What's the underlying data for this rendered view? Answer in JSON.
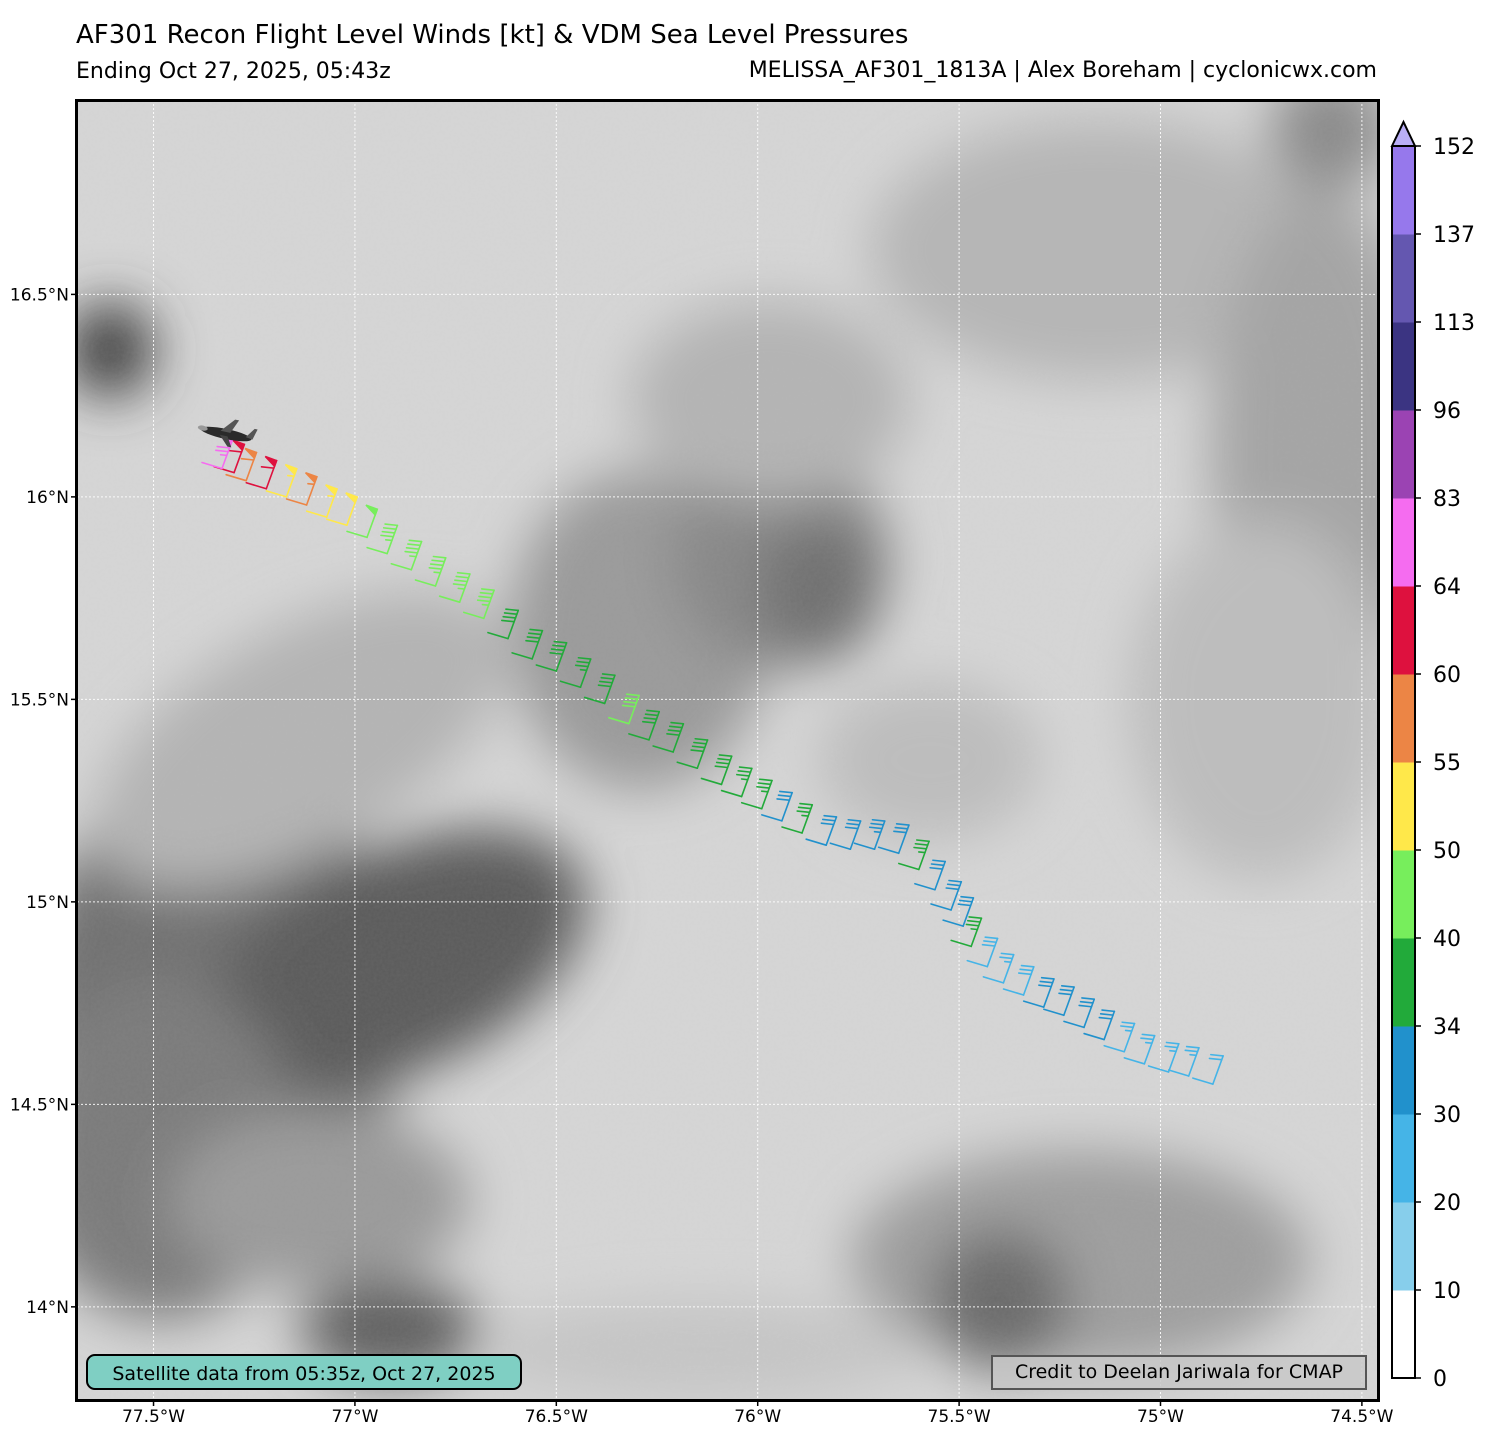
{
  "header": {
    "title": "AF301 Recon Flight Level Winds [kt] & VDM Sea Level Pressures",
    "subtitle_left": "Ending Oct 27, 2025, 05:43z",
    "subtitle_right": "MELISSA_AF301_1813A | Alex Boreham | cyclonicwx.com"
  },
  "map": {
    "lon_range": [
      -77.69,
      -74.46
    ],
    "lat_range": [
      13.77,
      16.98
    ],
    "lon_ticks": [
      {
        "value": -77.5,
        "label": "77.5°W"
      },
      {
        "value": -77.0,
        "label": "77°W"
      },
      {
        "value": -76.5,
        "label": "76.5°W"
      },
      {
        "value": -76.0,
        "label": "76°W"
      },
      {
        "value": -75.5,
        "label": "75.5°W"
      },
      {
        "value": -75.0,
        "label": "75°W"
      },
      {
        "value": -74.5,
        "label": "74.5°W"
      }
    ],
    "lat_ticks": [
      {
        "value": 16.5,
        "label": "16.5°N"
      },
      {
        "value": 16.0,
        "label": "16°N"
      },
      {
        "value": 15.5,
        "label": "15.5°N"
      },
      {
        "value": 15.0,
        "label": "15°N"
      },
      {
        "value": 14.5,
        "label": "14.5°N"
      },
      {
        "value": 14.0,
        "label": "14°N"
      }
    ],
    "gridlines": true,
    "background": "grayscale infrared satellite imagery"
  },
  "colorbar": {
    "levels": [
      "0",
      "10",
      "20",
      "30",
      "34",
      "40",
      "50",
      "55",
      "60",
      "64",
      "83",
      "96",
      "113",
      "137",
      "152"
    ],
    "colors": [
      "#ffffff",
      "#87ceeb",
      "#45b4e7",
      "#2191cc",
      "#22aa3a",
      "#77ee5c",
      "#ffe84a",
      "#ec8545",
      "#de113e",
      "#f56cf0",
      "#9b43b3",
      "#3b3482",
      "#6457b0",
      "#9678ec"
    ],
    "extend_color": "#b9aef6"
  },
  "flight_track": {
    "aircraft": "AF301",
    "start": {
      "lon": -74.87,
      "lat": 14.56
    },
    "end": {
      "lon": -77.33,
      "lat": 16.08
    },
    "obs": [
      {
        "lon": -74.87,
        "lat": 14.55,
        "kt": 22
      },
      {
        "lon": -74.93,
        "lat": 14.57,
        "kt": 24
      },
      {
        "lon": -74.98,
        "lat": 14.58,
        "kt": 26
      },
      {
        "lon": -75.04,
        "lat": 14.6,
        "kt": 27
      },
      {
        "lon": -75.09,
        "lat": 14.63,
        "kt": 25
      },
      {
        "lon": -75.14,
        "lat": 14.66,
        "kt": 31
      },
      {
        "lon": -75.19,
        "lat": 14.69,
        "kt": 32
      },
      {
        "lon": -75.24,
        "lat": 14.72,
        "kt": 32
      },
      {
        "lon": -75.29,
        "lat": 14.74,
        "kt": 31
      },
      {
        "lon": -75.34,
        "lat": 14.77,
        "kt": 28
      },
      {
        "lon": -75.39,
        "lat": 14.8,
        "kt": 27
      },
      {
        "lon": -75.43,
        "lat": 14.84,
        "kt": 29
      },
      {
        "lon": -75.47,
        "lat": 14.89,
        "kt": 36
      },
      {
        "lon": -75.49,
        "lat": 14.94,
        "kt": 31
      },
      {
        "lon": -75.52,
        "lat": 14.98,
        "kt": 32
      },
      {
        "lon": -75.56,
        "lat": 15.03,
        "kt": 30
      },
      {
        "lon": -75.6,
        "lat": 15.08,
        "kt": 36
      },
      {
        "lon": -75.65,
        "lat": 15.12,
        "kt": 32
      },
      {
        "lon": -75.71,
        "lat": 15.13,
        "kt": 33
      },
      {
        "lon": -75.77,
        "lat": 15.13,
        "kt": 32
      },
      {
        "lon": -75.83,
        "lat": 15.14,
        "kt": 31
      },
      {
        "lon": -75.89,
        "lat": 15.17,
        "kt": 36
      },
      {
        "lon": -75.94,
        "lat": 15.2,
        "kt": 31
      },
      {
        "lon": -75.99,
        "lat": 15.23,
        "kt": 36
      },
      {
        "lon": -76.04,
        "lat": 15.26,
        "kt": 37
      },
      {
        "lon": -76.09,
        "lat": 15.29,
        "kt": 38
      },
      {
        "lon": -76.15,
        "lat": 15.33,
        "kt": 39
      },
      {
        "lon": -76.21,
        "lat": 15.37,
        "kt": 38
      },
      {
        "lon": -76.27,
        "lat": 15.4,
        "kt": 39
      },
      {
        "lon": -76.32,
        "lat": 15.44,
        "kt": 42
      },
      {
        "lon": -76.38,
        "lat": 15.49,
        "kt": 38
      },
      {
        "lon": -76.44,
        "lat": 15.53,
        "kt": 37
      },
      {
        "lon": -76.5,
        "lat": 15.57,
        "kt": 38
      },
      {
        "lon": -76.56,
        "lat": 15.6,
        "kt": 38
      },
      {
        "lon": -76.62,
        "lat": 15.65,
        "kt": 39
      },
      {
        "lon": -76.68,
        "lat": 15.7,
        "kt": 44
      },
      {
        "lon": -76.74,
        "lat": 15.74,
        "kt": 45
      },
      {
        "lon": -76.8,
        "lat": 15.78,
        "kt": 43
      },
      {
        "lon": -76.86,
        "lat": 15.82,
        "kt": 44
      },
      {
        "lon": -76.92,
        "lat": 15.86,
        "kt": 45
      },
      {
        "lon": -76.97,
        "lat": 15.9,
        "kt": 48
      },
      {
        "lon": -77.02,
        "lat": 15.93,
        "kt": 52
      },
      {
        "lon": -77.07,
        "lat": 15.95,
        "kt": 53
      },
      {
        "lon": -77.12,
        "lat": 15.98,
        "kt": 57
      },
      {
        "lon": -77.17,
        "lat": 16.0,
        "kt": 54
      },
      {
        "lon": -77.22,
        "lat": 16.02,
        "kt": 62
      },
      {
        "lon": -77.27,
        "lat": 16.04,
        "kt": 58
      },
      {
        "lon": -77.3,
        "lat": 16.06,
        "kt": 62
      },
      {
        "lon": -77.33,
        "lat": 16.07,
        "kt": 75
      }
    ]
  },
  "annotations": {
    "satellite": "Satellite data from 05:35z, Oct 27, 2025",
    "credit": "Credit to Deelan Jariwala for CMAP"
  }
}
